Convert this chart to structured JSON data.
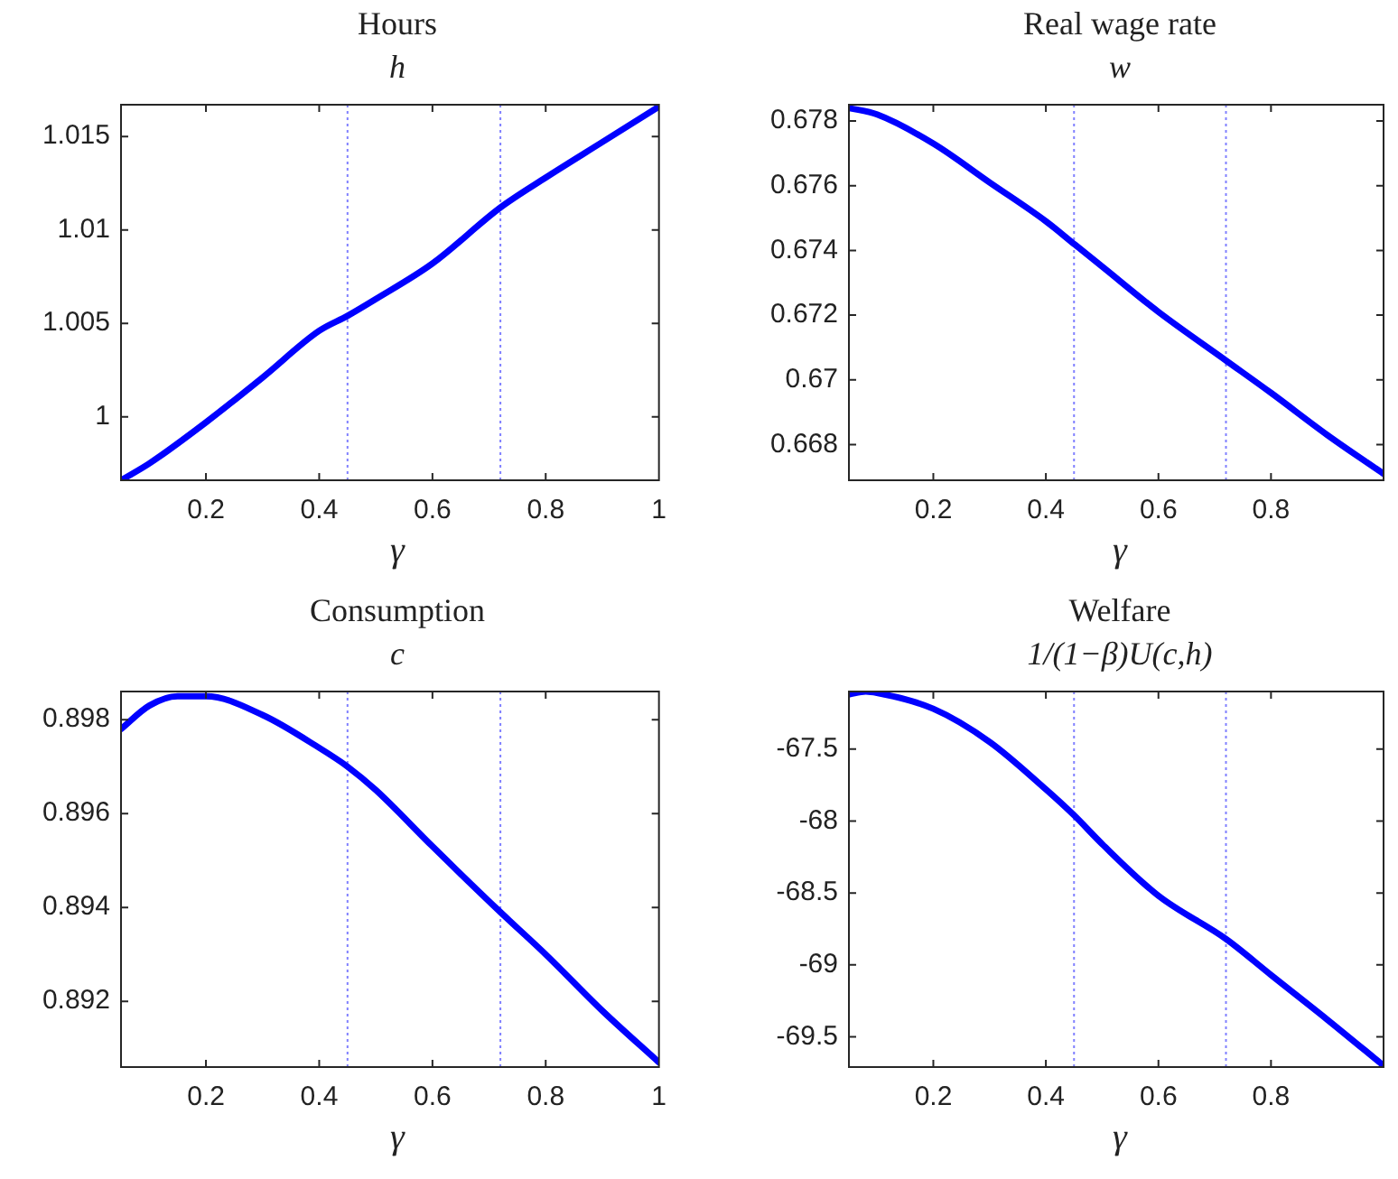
{
  "chart_data": [
    {
      "type": "line",
      "title": "Hours",
      "subtitle": "h",
      "xlabel": "γ",
      "marker": "none",
      "line_style": "solid",
      "x": [
        0.05,
        0.1,
        0.2,
        0.3,
        0.4,
        0.45,
        0.5,
        0.6,
        0.72,
        0.8,
        0.9,
        1
      ],
      "series": [
        {
          "color": "#0000ff",
          "values": [
            0.9966,
            0.9975,
            0.9997,
            1.0021,
            1.0046,
            1.0054,
            1.0063,
            1.0082,
            1.0112,
            1.0128,
            1.0147,
            1.0166
          ]
        }
      ],
      "xlim": [
        0.05,
        1
      ],
      "xticks": [
        0.2,
        0.4,
        0.6,
        0.8,
        1
      ],
      "ylim": [
        0.9966,
        1.0167
      ],
      "yticks": [
        1,
        1.005,
        1.01,
        1.015
      ],
      "ref_lines": [
        {
          "axis": "x",
          "value": 0.45,
          "color": "#8080ff",
          "line_style": "dotted"
        },
        {
          "axis": "x",
          "value": 0.72,
          "color": "#8080ff",
          "line_style": "dotted"
        }
      ]
    },
    {
      "type": "line",
      "title": "Real wage rate",
      "subtitle": "w",
      "xlabel": "γ",
      "marker": "none",
      "line_style": "solid",
      "x": [
        0.05,
        0.1,
        0.2,
        0.3,
        0.4,
        0.45,
        0.5,
        0.6,
        0.72,
        0.8,
        0.9,
        1
      ],
      "series": [
        {
          "color": "#0000ff",
          "values": [
            0.6784,
            0.6782,
            0.6773,
            0.6761,
            0.6749,
            0.6742,
            0.6735,
            0.6721,
            0.6706,
            0.6696,
            0.6683,
            0.6671
          ]
        }
      ],
      "xlim": [
        0.05,
        1
      ],
      "xticks": [
        0.2,
        0.4,
        0.6,
        0.8,
        {
          "value": 1,
          "label": null
        }
      ],
      "ylim": [
        0.6669,
        0.6785
      ],
      "yticks": [
        0.668,
        0.67,
        0.672,
        0.674,
        0.676,
        0.678
      ],
      "ref_lines": [
        {
          "axis": "x",
          "value": 0.45,
          "color": "#8080ff",
          "line_style": "dotted"
        },
        {
          "axis": "x",
          "value": 0.72,
          "color": "#8080ff",
          "line_style": "dotted"
        }
      ]
    },
    {
      "type": "line",
      "title": "Consumption",
      "subtitle": "c",
      "xlabel": "γ",
      "marker": "none",
      "line_style": "solid",
      "x": [
        0.05,
        0.1,
        0.15,
        0.175,
        0.2,
        0.3,
        0.4,
        0.45,
        0.5,
        0.6,
        0.72,
        0.8,
        0.9,
        1
      ],
      "series": [
        {
          "color": "#0000ff",
          "values": [
            0.8978,
            0.8983,
            0.8985,
            0.8985,
            0.8985,
            0.8981,
            0.8974,
            0.897,
            0.8965,
            0.8953,
            0.8939,
            0.893,
            0.8918,
            0.8907
          ]
        }
      ],
      "xlim": [
        0.05,
        1
      ],
      "xticks": [
        0.2,
        0.4,
        0.6,
        0.8,
        1
      ],
      "ylim": [
        0.8906,
        0.8986
      ],
      "yticks": [
        0.892,
        0.894,
        0.896,
        0.898
      ],
      "ref_lines": [
        {
          "axis": "x",
          "value": 0.45,
          "color": "#8080ff",
          "line_style": "dotted"
        },
        {
          "axis": "x",
          "value": 0.72,
          "color": "#8080ff",
          "line_style": "dotted"
        }
      ]
    },
    {
      "type": "line",
      "title": "Welfare",
      "subtitle": "1/(1−β)U(c,h)",
      "xlabel": "γ",
      "marker": "none",
      "line_style": "solid",
      "x": [
        0.05,
        0.08,
        0.1,
        0.2,
        0.3,
        0.4,
        0.45,
        0.5,
        0.6,
        0.72,
        0.8,
        0.9,
        1
      ],
      "series": [
        {
          "color": "#0000ff",
          "values": [
            -67.12,
            -67.1,
            -67.11,
            -67.22,
            -67.45,
            -67.78,
            -67.96,
            -68.16,
            -68.52,
            -68.82,
            -69.07,
            -69.38,
            -69.7
          ]
        }
      ],
      "xlim": [
        0.05,
        1
      ],
      "xticks": [
        0.2,
        0.4,
        0.6,
        0.8,
        {
          "value": 1,
          "label": null
        }
      ],
      "ylim": [
        -69.71,
        -67.1
      ],
      "yticks": [
        -69.5,
        -69,
        -68.5,
        -68,
        -67.5
      ],
      "ref_lines": [
        {
          "axis": "x",
          "value": 0.45,
          "color": "#8080ff",
          "line_style": "dotted"
        },
        {
          "axis": "x",
          "value": 0.72,
          "color": "#8080ff",
          "line_style": "dotted"
        }
      ]
    }
  ]
}
